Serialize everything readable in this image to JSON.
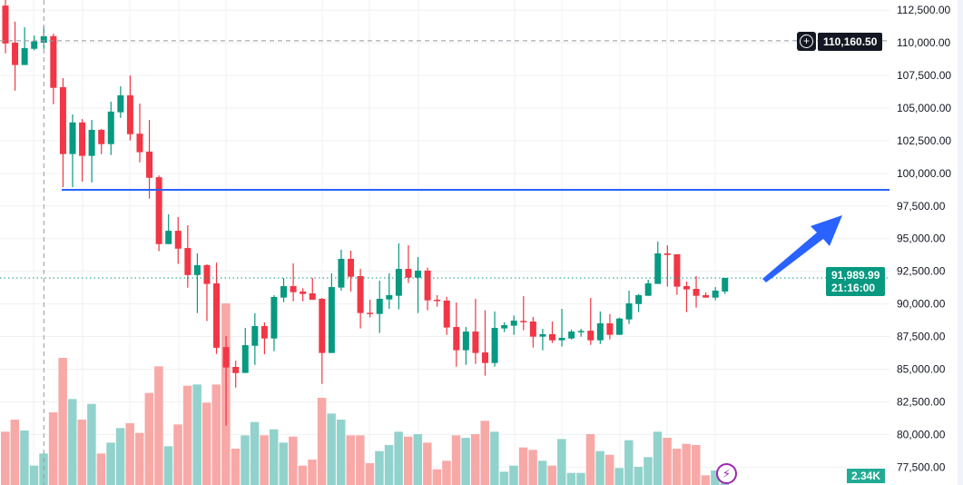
{
  "chart_data": {
    "type": "candlestick",
    "title": "",
    "y_axis": {
      "ticks": [
        "112,500.00",
        "110,000.00",
        "107,500.00",
        "105,000.00",
        "102,500.00",
        "100,000.00",
        "97,500.00",
        "95,000.00",
        "92,500.00",
        "90,000.00",
        "87,500.00",
        "85,000.00",
        "82,500.00",
        "80,000.00",
        "77,500.00"
      ],
      "tick_values": [
        112500,
        110000,
        107500,
        105000,
        102500,
        100000,
        97500,
        95000,
        92500,
        90000,
        87500,
        85000,
        82500,
        80000,
        77500
      ],
      "ylim": [
        77000,
        113300
      ]
    },
    "candle_fields": [
      "open",
      "high",
      "low",
      "close",
      "volume_k"
    ],
    "candles": [
      [
        112850,
        113300,
        109200,
        109950,
        44
      ],
      [
        110010,
        111620,
        106340,
        108300,
        54
      ],
      [
        108300,
        111200,
        108300,
        109590,
        45
      ],
      [
        109540,
        110560,
        109420,
        110110,
        16
      ],
      [
        110010,
        111270,
        109540,
        110510,
        26
      ],
      [
        110510,
        110700,
        105300,
        106550,
        60
      ],
      [
        106600,
        107290,
        98940,
        101480,
        105
      ],
      [
        101480,
        104510,
        98940,
        103900,
        71
      ],
      [
        103900,
        104160,
        99370,
        101340,
        54
      ],
      [
        101340,
        104090,
        99300,
        103330,
        67
      ],
      [
        103330,
        103400,
        101480,
        102240,
        26
      ],
      [
        102240,
        105490,
        101410,
        104730,
        35
      ],
      [
        104680,
        106670,
        104250,
        105980,
        47
      ],
      [
        105980,
        107500,
        102520,
        103000,
        51
      ],
      [
        103040,
        105340,
        100840,
        101620,
        43
      ],
      [
        101670,
        104090,
        98070,
        99660,
        76
      ],
      [
        99700,
        99840,
        94040,
        94580,
        98
      ],
      [
        94580,
        96860,
        94580,
        95600,
        32
      ],
      [
        95600,
        96650,
        93070,
        94230,
        50
      ],
      [
        94280,
        96030,
        91240,
        92210,
        82
      ],
      [
        92210,
        93870,
        89300,
        92970,
        83
      ],
      [
        92970,
        93040,
        88680,
        91530,
        68
      ],
      [
        91570,
        93160,
        86170,
        86640,
        83
      ],
      [
        86690,
        87540,
        80670,
        85130,
        150
      ],
      [
        85170,
        85650,
        83590,
        84700,
        30
      ],
      [
        84710,
        88160,
        84710,
        86840,
        41
      ],
      [
        86790,
        89280,
        85330,
        88300,
        52
      ],
      [
        88300,
        88580,
        86150,
        87350,
        41
      ],
      [
        87350,
        90670,
        86380,
        90530,
        46
      ],
      [
        90480,
        91990,
        90130,
        91360,
        35
      ],
      [
        91360,
        93100,
        90200,
        90900,
        40
      ],
      [
        90950,
        91200,
        90200,
        90760,
        16
      ],
      [
        90810,
        91990,
        90320,
        90320,
        21
      ],
      [
        90390,
        90460,
        83870,
        86240,
        72
      ],
      [
        86240,
        92340,
        86240,
        91290,
        59
      ],
      [
        91250,
        94150,
        91020,
        93450,
        54
      ],
      [
        93450,
        94080,
        90950,
        92080,
        41
      ],
      [
        92130,
        92680,
        88120,
        89300,
        41
      ],
      [
        89320,
        90320,
        88970,
        89230,
        18
      ],
      [
        89230,
        91780,
        87770,
        90390,
        28
      ],
      [
        90340,
        92340,
        89620,
        90670,
        33
      ],
      [
        90620,
        94630,
        89580,
        92680,
        44
      ],
      [
        92680,
        94490,
        91600,
        92010,
        40
      ],
      [
        92010,
        93590,
        89300,
        92550,
        42
      ],
      [
        92550,
        92780,
        89510,
        90270,
        35
      ],
      [
        90320,
        90670,
        89790,
        90250,
        13
      ],
      [
        90250,
        90550,
        87630,
        88190,
        20
      ],
      [
        88230,
        90110,
        85190,
        86450,
        41
      ],
      [
        86450,
        88230,
        85330,
        87880,
        39
      ],
      [
        87880,
        90390,
        85400,
        86240,
        42
      ],
      [
        86280,
        89510,
        84500,
        85470,
        53
      ],
      [
        85470,
        89420,
        85190,
        88160,
        44
      ],
      [
        88120,
        88580,
        87840,
        88370,
        11
      ],
      [
        88330,
        89110,
        87630,
        88720,
        16
      ],
      [
        88700,
        90600,
        87980,
        88650,
        31
      ],
      [
        88650,
        89000,
        86660,
        87490,
        29
      ],
      [
        87490,
        88090,
        86450,
        87680,
        20
      ],
      [
        87680,
        88650,
        87000,
        87210,
        16
      ],
      [
        87210,
        89620,
        86730,
        87400,
        38
      ],
      [
        87350,
        88020,
        87280,
        87880,
        10
      ],
      [
        87840,
        88090,
        87490,
        87930,
        10
      ],
      [
        87950,
        90460,
        86860,
        87210,
        42
      ],
      [
        87210,
        89420,
        86930,
        88510,
        28
      ],
      [
        88510,
        89210,
        87280,
        87630,
        25
      ],
      [
        87630,
        88950,
        87630,
        88880,
        14
      ],
      [
        88810,
        91020,
        88460,
        90040,
        37
      ],
      [
        89990,
        90760,
        89370,
        90670,
        15
      ],
      [
        90620,
        91850,
        90620,
        91570,
        23
      ],
      [
        91530,
        94770,
        91530,
        93870,
        44
      ],
      [
        93870,
        94490,
        91320,
        93750,
        39
      ],
      [
        93800,
        93800,
        90690,
        91320,
        30
      ],
      [
        91360,
        91710,
        89370,
        91110,
        34
      ],
      [
        91150,
        92130,
        89720,
        90620,
        33
      ],
      [
        90670,
        90880,
        90480,
        90480,
        8
      ],
      [
        90480,
        91290,
        90270,
        91020,
        12
      ],
      [
        90950,
        91990,
        90760,
        91990,
        2.34
      ]
    ],
    "horizontal_line_price": 98740,
    "crosshair_price": 110160.5,
    "crosshair_candle_index": 4,
    "last_price": 91989.99,
    "colors": {
      "up": "#089981",
      "down": "#f23645",
      "vol_up": "#92d2cc",
      "vol_down": "#f7a9a7",
      "hline": "#2962ff",
      "arrow": "#2962ff",
      "last_line": "#089981"
    }
  },
  "labels": {
    "crosshair_price": "110,160.50",
    "last_price": "91,989.99",
    "countdown": "21:16:00",
    "volume": "2.34K"
  },
  "icons": {
    "crosshair_add": "plus-circle-icon",
    "bolt": "lightning-icon"
  }
}
